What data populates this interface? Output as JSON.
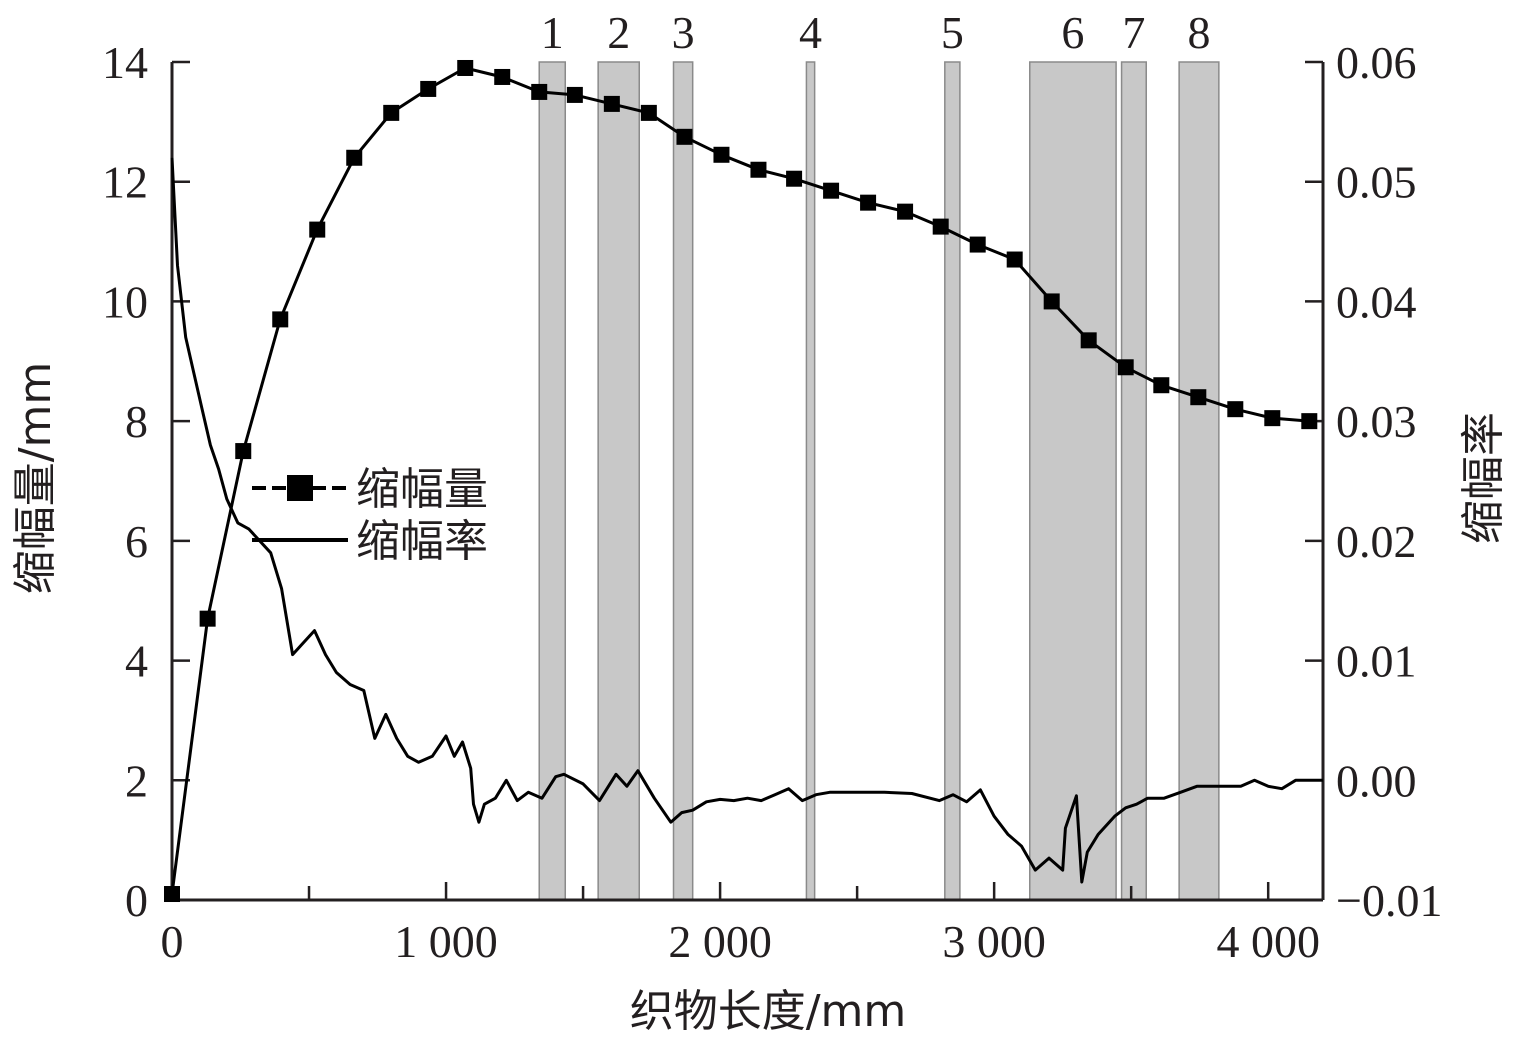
{
  "chart_data": {
    "type": "line",
    "title": "",
    "xlabel": "织物长度/mm",
    "ylabel_left": "缩幅量/mm",
    "ylabel_right": "缩幅率",
    "xlim": [
      0,
      4200
    ],
    "ylim_left": [
      0,
      14
    ],
    "ylim_right": [
      -0.01,
      0.06
    ],
    "x_ticks": [
      0,
      1000,
      2000,
      3000,
      4000
    ],
    "x_tick_labels": [
      "0",
      "1 000",
      "2 000",
      "3 000",
      "4 000"
    ],
    "y_left_ticks": [
      0,
      2,
      4,
      6,
      8,
      10,
      12,
      14
    ],
    "y_left_tick_labels": [
      "0",
      "2",
      "4",
      "6",
      "8",
      "10",
      "12",
      "14"
    ],
    "y_right_ticks": [
      -0.01,
      0,
      0.01,
      0.02,
      0.03,
      0.04,
      0.05,
      0.06
    ],
    "y_right_tick_labels": [
      "−0.01",
      "0.00",
      "0.01",
      "0.02",
      "0.03",
      "0.04",
      "0.05",
      "0.06"
    ],
    "grid": false,
    "legend_position": "left-middle",
    "series": [
      {
        "name": "缩幅量",
        "axis": "left",
        "marker": "square",
        "color": "#000000",
        "x": [
          0,
          130,
          260,
          395,
          530,
          665,
          800,
          935,
          1070,
          1205,
          1340,
          1470,
          1605,
          1740,
          1870,
          2005,
          2140,
          2270,
          2405,
          2540,
          2675,
          2805,
          2940,
          3075,
          3210,
          3345,
          3480,
          3610,
          3745,
          3880,
          4015,
          4150
        ],
        "y": [
          0.1,
          4.7,
          7.5,
          9.7,
          11.2,
          12.4,
          13.15,
          13.55,
          13.9,
          13.75,
          13.5,
          13.45,
          13.3,
          13.15,
          12.75,
          12.45,
          12.2,
          12.05,
          11.85,
          11.65,
          11.5,
          11.25,
          10.95,
          10.7,
          10.0,
          9.35,
          8.9,
          8.6,
          8.4,
          8.2,
          8.05,
          8.0
        ]
      },
      {
        "name": "缩幅率",
        "axis": "right",
        "marker": "none",
        "color": "#000000",
        "x": [
          0,
          20,
          50,
          80,
          110,
          140,
          170,
          200,
          240,
          280,
          320,
          360,
          400,
          440,
          480,
          520,
          560,
          600,
          650,
          700,
          740,
          780,
          820,
          860,
          900,
          950,
          1000,
          1030,
          1060,
          1090,
          1100,
          1120,
          1140,
          1180,
          1220,
          1260,
          1300,
          1350,
          1400,
          1430,
          1500,
          1560,
          1620,
          1660,
          1700,
          1760,
          1820,
          1860,
          1900,
          1950,
          2000,
          2050,
          2100,
          2150,
          2200,
          2250,
          2300,
          2350,
          2400,
          2500,
          2600,
          2700,
          2800,
          2850,
          2900,
          2950,
          3000,
          3050,
          3100,
          3150,
          3200,
          3250,
          3260,
          3300,
          3320,
          3340,
          3380,
          3440,
          3480,
          3520,
          3560,
          3620,
          3680,
          3740,
          3800,
          3850,
          3900,
          3950,
          4000,
          4050,
          4100,
          4200
        ],
        "y": [
          0.052,
          0.043,
          0.037,
          0.034,
          0.031,
          0.028,
          0.026,
          0.0235,
          0.0215,
          0.021,
          0.02,
          0.019,
          0.016,
          0.0105,
          0.0115,
          0.0125,
          0.0105,
          0.009,
          0.008,
          0.0075,
          0.0035,
          0.0055,
          0.0035,
          0.002,
          0.0015,
          0.002,
          0.0037,
          0.002,
          0.0032,
          0.001,
          -0.002,
          -0.0035,
          -0.002,
          -0.0015,
          0.0,
          -0.0017,
          -0.001,
          -0.0015,
          0.0003,
          0.0005,
          -0.0003,
          -0.0017,
          0.0005,
          -0.0005,
          0.0008,
          -0.0015,
          -0.0035,
          -0.0027,
          -0.0025,
          -0.0018,
          -0.0016,
          -0.0017,
          -0.0015,
          -0.0017,
          -0.0012,
          -0.0007,
          -0.0017,
          -0.0012,
          -0.001,
          -0.001,
          -0.001,
          -0.0011,
          -0.0017,
          -0.0012,
          -0.0018,
          -0.0008,
          -0.003,
          -0.0045,
          -0.0055,
          -0.0075,
          -0.0065,
          -0.0075,
          -0.004,
          -0.0013,
          -0.0085,
          -0.006,
          -0.0045,
          -0.003,
          -0.0023,
          -0.002,
          -0.0015,
          -0.0015,
          -0.001,
          -0.0005,
          -0.0005,
          -0.0005,
          -0.0005,
          0.0,
          -0.0005,
          -0.0007,
          0.0,
          0.0
        ]
      }
    ],
    "shaded_regions": [
      {
        "label": "1",
        "x": [
          1340,
          1435
        ]
      },
      {
        "label": "2",
        "x": [
          1555,
          1705
        ]
      },
      {
        "label": "3",
        "x": [
          1830,
          1900
        ]
      },
      {
        "label": "4",
        "x": [
          2315,
          2345
        ]
      },
      {
        "label": "5",
        "x": [
          2820,
          2875
        ]
      },
      {
        "label": "6",
        "x": [
          3130,
          3445
        ]
      },
      {
        "label": "7",
        "x": [
          3465,
          3555
        ]
      },
      {
        "label": "8",
        "x": [
          3675,
          3820
        ]
      }
    ],
    "shade_color": "#c8c8c8",
    "legend": [
      {
        "label": "缩幅量",
        "style": "line-square"
      },
      {
        "label": "缩幅率",
        "style": "line"
      }
    ]
  }
}
